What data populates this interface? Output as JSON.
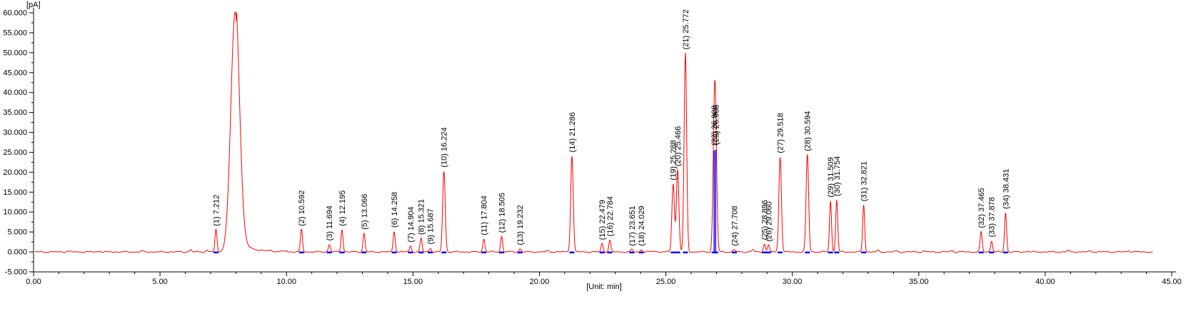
{
  "chart_data": {
    "type": "line",
    "description": "Gas chromatogram trace with numbered peak retention-time annotations",
    "trace_color": "#ff0000",
    "marker_color": "#0000ff",
    "axis_color": "#000000",
    "x_axis": {
      "unit_label": "[Unit: min]",
      "min": 0,
      "max": 45,
      "major_step": 5,
      "minor_step": 1,
      "tick_labels": [
        "0.00",
        "5.00",
        "10.00",
        "15.00",
        "20.00",
        "25.00",
        "30.00",
        "35.00",
        "40.00",
        "45.00"
      ]
    },
    "y_axis": {
      "unit_label": "[pA]",
      "min": -5,
      "max": 60,
      "major_step": 5,
      "minor_step": 2.5,
      "tick_labels": [
        "60.000",
        "55.000",
        "50.000",
        "45.000",
        "40.000",
        "35.000",
        "30.000",
        "25.000",
        "20.000",
        "15.000",
        "10.000",
        "5.000",
        "0.000",
        "-5.000"
      ]
    },
    "solvent_peak": {
      "rt": 7.97,
      "height_pA": 60.2,
      "labeled": false
    },
    "peaks": [
      {
        "n": 1,
        "rt": 7.212,
        "height_pA": 5.6,
        "label": "(1) 7.212"
      },
      {
        "n": 2,
        "rt": 10.592,
        "height_pA": 5.6,
        "label": "(2) 10.592"
      },
      {
        "n": 3,
        "rt": 11.694,
        "height_pA": 1.9,
        "label": "(3) 11.694"
      },
      {
        "n": 4,
        "rt": 12.195,
        "height_pA": 5.6,
        "label": "(4) 12.195"
      },
      {
        "n": 5,
        "rt": 13.066,
        "height_pA": 4.7,
        "label": "(5) 13.066"
      },
      {
        "n": 6,
        "rt": 14.258,
        "height_pA": 5.2,
        "label": "(6) 14.258"
      },
      {
        "n": 7,
        "rt": 14.904,
        "height_pA": 1.5,
        "label": "(7) 14.904"
      },
      {
        "n": 8,
        "rt": 15.321,
        "height_pA": 3.4,
        "label": "(8) 15.321"
      },
      {
        "n": 9,
        "rt": 15.687,
        "height_pA": 1.0,
        "label": "(9) 15.687"
      },
      {
        "n": 10,
        "rt": 16.224,
        "height_pA": 20.3,
        "label": "(10) 16.224"
      },
      {
        "n": 11,
        "rt": 17.804,
        "height_pA": 3.3,
        "label": "(11) 17.804"
      },
      {
        "n": 12,
        "rt": 18.505,
        "height_pA": 3.9,
        "label": "(12) 18.505"
      },
      {
        "n": 13,
        "rt": 19.232,
        "height_pA": 0.8,
        "label": "(13) 19.232"
      },
      {
        "n": 14,
        "rt": 21.286,
        "height_pA": 24.1,
        "label": "(14) 21.286"
      },
      {
        "n": 15,
        "rt": 22.479,
        "height_pA": 2.1,
        "label": "(15) 22.479"
      },
      {
        "n": 16,
        "rt": 22.784,
        "height_pA": 3.0,
        "label": "(16) 22.784"
      },
      {
        "n": 17,
        "rt": 23.651,
        "height_pA": 0.6,
        "label": "(17) 23.651"
      },
      {
        "n": 18,
        "rt": 24.029,
        "height_pA": 0.6,
        "label": "(18) 24.029"
      },
      {
        "n": 19,
        "rt": 25.288,
        "height_pA": 17.1,
        "label": "(19) 25.288"
      },
      {
        "n": 20,
        "rt": 25.466,
        "height_pA": 20.6,
        "label": "(20) 25.466"
      },
      {
        "n": 21,
        "rt": 25.772,
        "height_pA": 49.9,
        "label": "(21) 25.772"
      },
      {
        "n": 22,
        "rt": 26.908,
        "height_pA": 25.8,
        "label": "(22) 26.908",
        "blue_vline": true
      },
      {
        "n": 23,
        "rt": 26.968,
        "height_pA": 26.0,
        "label": "(23) 26.968",
        "blue_vline": true
      },
      {
        "n": 24,
        "rt": 27.708,
        "height_pA": 0.6,
        "label": "(24) 27.708"
      },
      {
        "n": 25,
        "rt": 28.896,
        "height_pA": 2.1,
        "label": "(25) 28.896"
      },
      {
        "n": 26,
        "rt": 29.06,
        "height_pA": 1.7,
        "label": "(26) 29.060"
      },
      {
        "n": 27,
        "rt": 29.518,
        "height_pA": 23.9,
        "label": "(27) 29.518"
      },
      {
        "n": 28,
        "rt": 30.594,
        "height_pA": 24.4,
        "label": "(28) 30.594"
      },
      {
        "n": 29,
        "rt": 31.509,
        "height_pA": 12.8,
        "label": "(29) 31.509"
      },
      {
        "n": 30,
        "rt": 31.754,
        "height_pA": 13.1,
        "label": "(30) 31.754"
      },
      {
        "n": 31,
        "rt": 32.821,
        "height_pA": 11.8,
        "label": "(31) 32.821"
      },
      {
        "n": 32,
        "rt": 37.465,
        "height_pA": 5.1,
        "label": "(32) 37.465"
      },
      {
        "n": 33,
        "rt": 37.878,
        "height_pA": 2.8,
        "label": "(33) 37.878"
      },
      {
        "n": 34,
        "rt": 38.431,
        "height_pA": 9.9,
        "label": "(34) 38.431"
      }
    ],
    "minor_bumps": [
      [
        1.35,
        0.25
      ],
      [
        2.6,
        0.2
      ],
      [
        4.3,
        0.2
      ],
      [
        6.2,
        0.5
      ],
      [
        6.85,
        0.35
      ],
      [
        9.35,
        0.3
      ],
      [
        9.95,
        0.25
      ],
      [
        20.35,
        0.3
      ],
      [
        24.55,
        0.25
      ],
      [
        28.45,
        0.5
      ],
      [
        33.4,
        0.3
      ],
      [
        34.1,
        0.25
      ],
      [
        35.2,
        0.2
      ],
      [
        36.3,
        0.35
      ],
      [
        39.3,
        0.2
      ],
      [
        40.9,
        0.35
      ],
      [
        41.8,
        0.25
      ],
      [
        43.3,
        0.3
      ]
    ]
  }
}
